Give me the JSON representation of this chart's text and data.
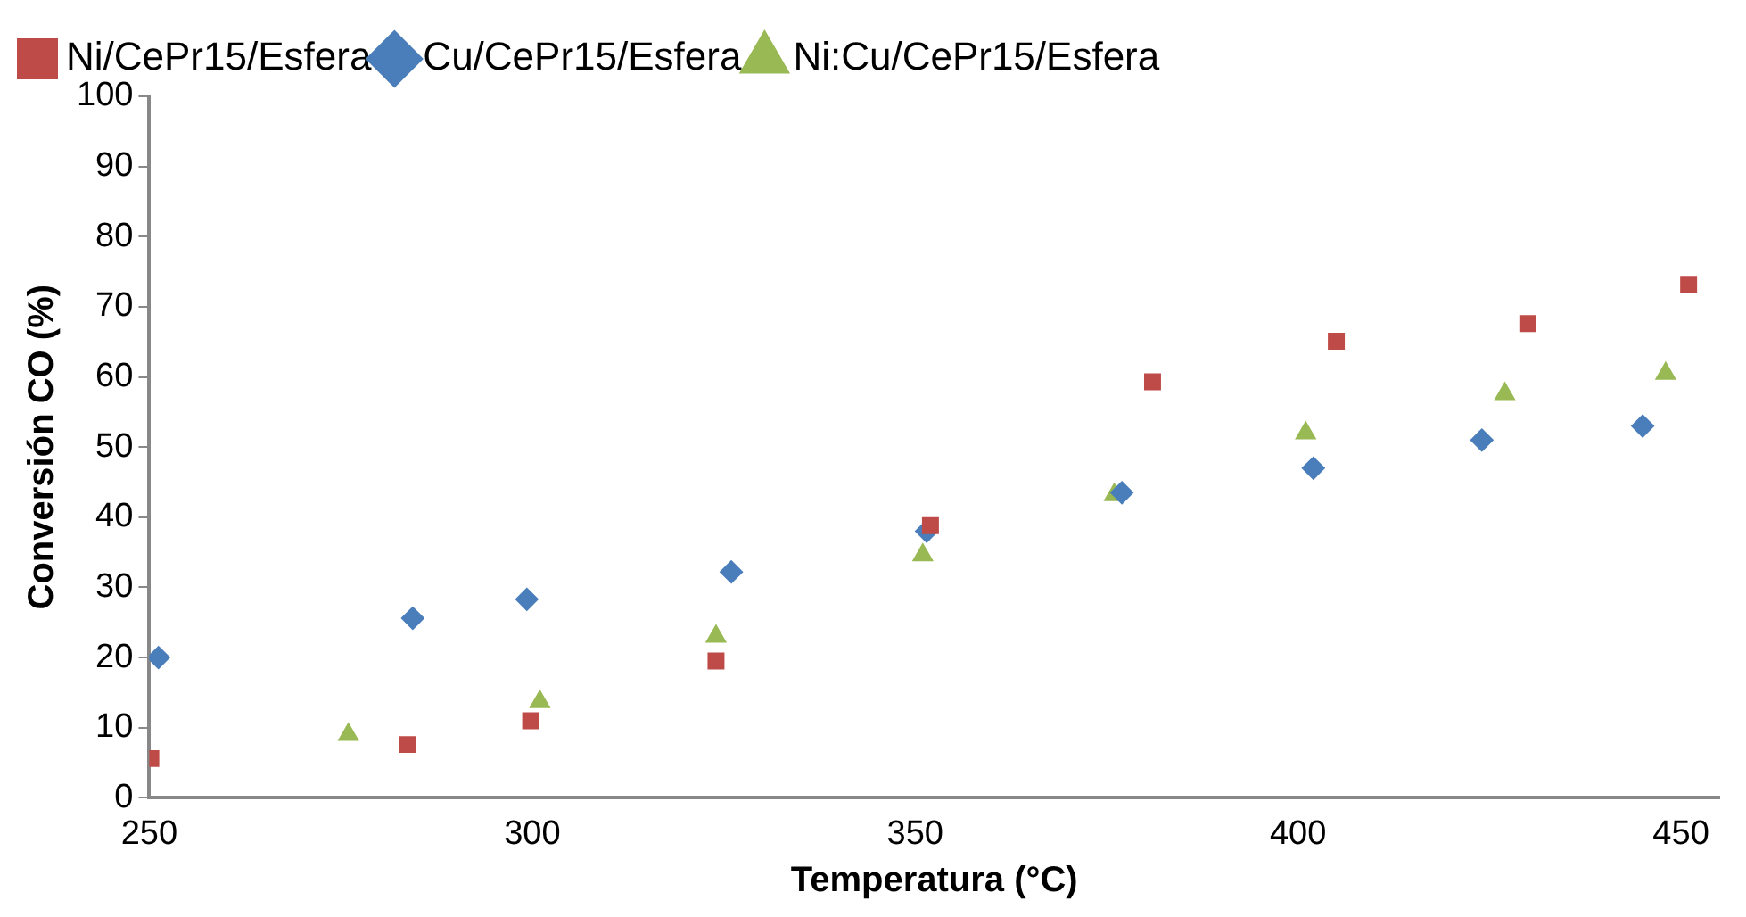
{
  "chart_data": {
    "type": "scatter",
    "xlabel": "Temperatura (°C)",
    "ylabel": "Conversión CO (%)",
    "xlim": [
      250,
      455
    ],
    "xticks": [
      250,
      300,
      350,
      400,
      450
    ],
    "ylim": [
      0,
      100
    ],
    "yticks": [
      0,
      10,
      20,
      30,
      40,
      50,
      60,
      70,
      80,
      90,
      100
    ],
    "grid": false,
    "legend": "top left",
    "series": [
      {
        "name": "Cu/CePr15/Esfera",
        "color": "#4a7ebb",
        "marker": "diamond",
        "x": [
          251.2,
          284.4,
          299.3,
          326,
          351.5,
          377,
          402,
          424,
          445
        ],
        "values": [
          20,
          25.6,
          28.3,
          32.2,
          38,
          43.5,
          47,
          51,
          53
        ]
      },
      {
        "name": "Ni/CePr15/Esfera",
        "color": "#be4b48",
        "marker": "square",
        "x": [
          250.2,
          283.7,
          299.8,
          324,
          352,
          381,
          405,
          430,
          451
        ],
        "values": [
          5.6,
          7.6,
          11,
          19.5,
          38.8,
          59.3,
          65.1,
          67.6,
          73.2
        ]
      },
      {
        "name": "Ni:Cu/CePr15/Esfera",
        "color": "#98b954",
        "marker": "triangle",
        "x": [
          276,
          301,
          324,
          351,
          376,
          401,
          427,
          448
        ],
        "values": [
          9,
          13.7,
          23,
          34.6,
          43.2,
          52,
          57.6,
          60.5
        ]
      }
    ]
  }
}
